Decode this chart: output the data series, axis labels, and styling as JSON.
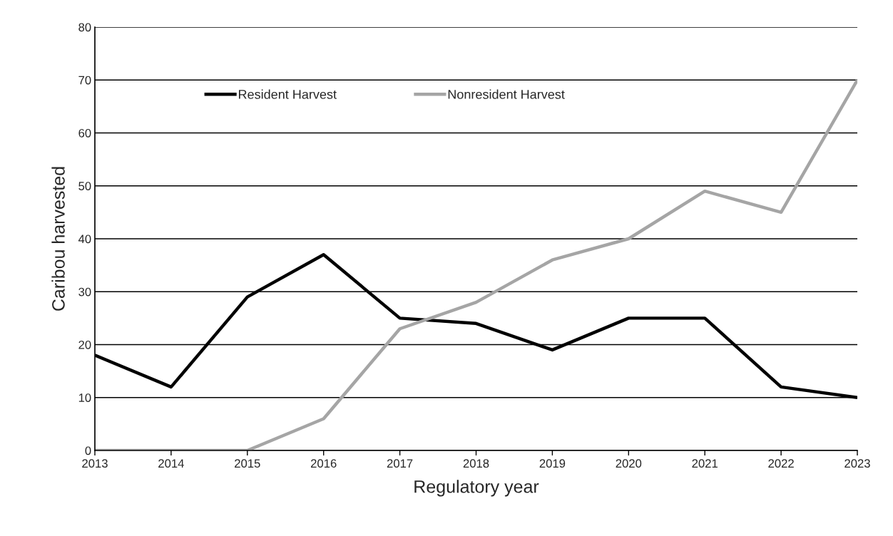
{
  "chart_data": {
    "type": "line",
    "xlabel": "Regulatory year",
    "ylabel": "Caribou harvested",
    "x": [
      2013,
      2014,
      2015,
      2016,
      2017,
      2018,
      2019,
      2020,
      2021,
      2022,
      2023
    ],
    "series": [
      {
        "name": "Resident Harvest",
        "color": "#000000",
        "values": [
          18,
          12,
          29,
          37,
          25,
          24,
          19,
          25,
          25,
          12,
          10
        ]
      },
      {
        "name": "Nonresident Harvest",
        "color": "#a5a5a5",
        "values": [
          0,
          0,
          0,
          6,
          23,
          28,
          36,
          40,
          49,
          45,
          70
        ]
      }
    ],
    "xlim": [
      2013,
      2023
    ],
    "xticks": [
      2013,
      2014,
      2015,
      2016,
      2017,
      2018,
      2019,
      2020,
      2021,
      2022,
      2023
    ],
    "ylim": [
      0,
      80
    ],
    "yticks": [
      0,
      10,
      20,
      30,
      40,
      50,
      60,
      70,
      80
    ],
    "grid": "y",
    "legend": "top",
    "marker": "none",
    "line_style": "solid"
  }
}
